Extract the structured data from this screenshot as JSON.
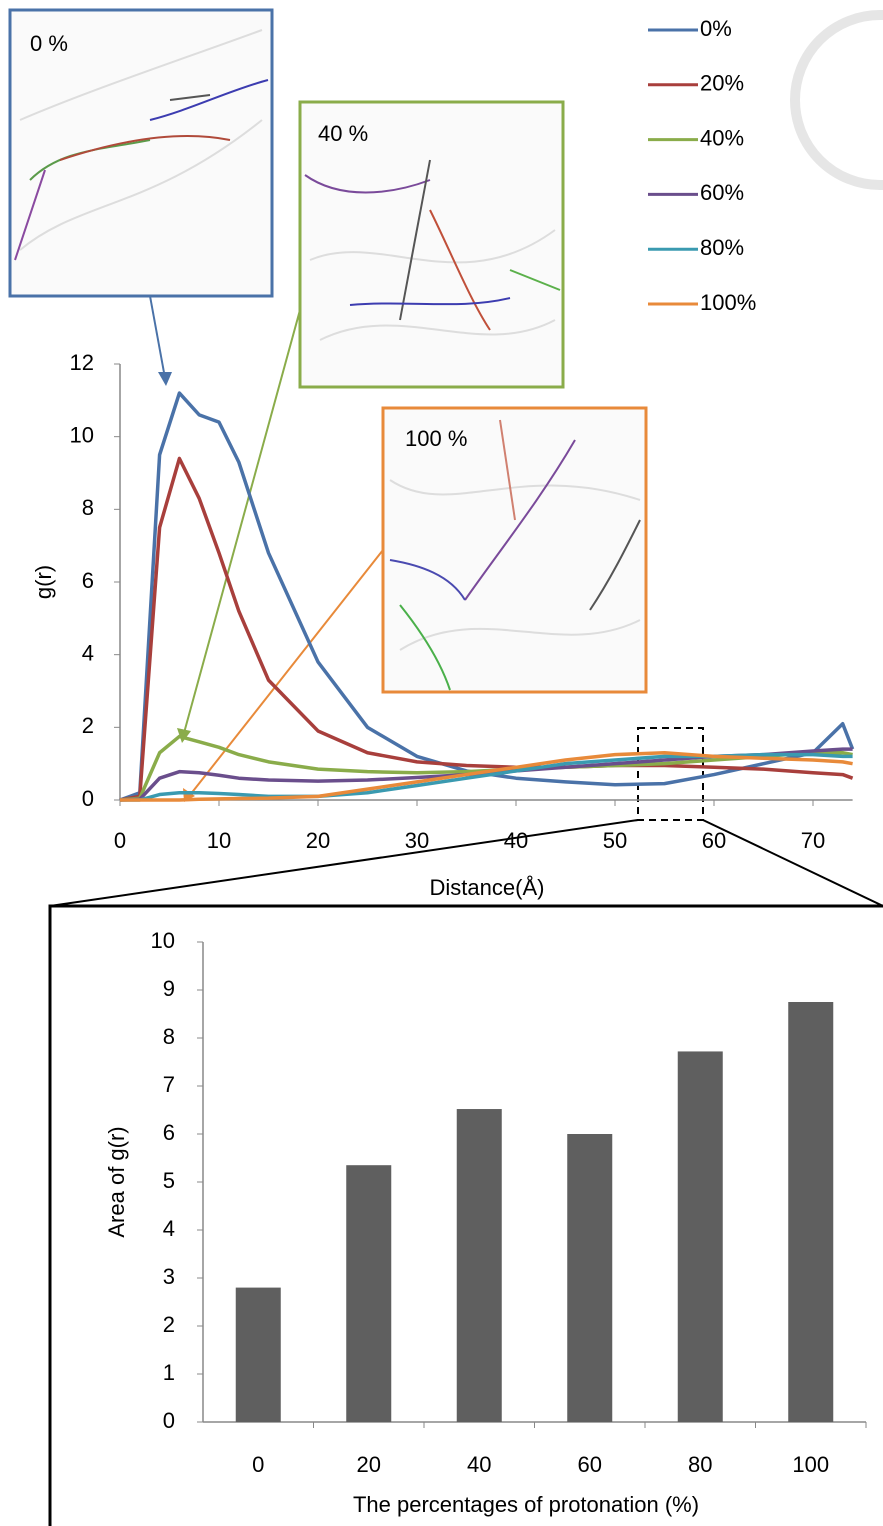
{
  "chart_data": [
    {
      "type": "line",
      "xlabel": "Distance(Å)",
      "ylabel": "g(r)",
      "x": [
        0,
        2,
        4,
        6,
        8,
        10,
        12,
        15,
        20,
        25,
        30,
        35,
        40,
        45,
        50,
        55,
        60,
        65,
        70,
        73,
        74
      ],
      "series": [
        {
          "name": "0%",
          "color": "#4a72a8",
          "values": [
            0,
            0.2,
            9.5,
            11.2,
            10.6,
            10.4,
            9.3,
            6.8,
            3.8,
            2.0,
            1.2,
            0.8,
            0.6,
            0.5,
            0.42,
            0.45,
            0.7,
            1.0,
            1.3,
            2.1,
            1.4
          ]
        },
        {
          "name": "20%",
          "color": "#a83f3c",
          "values": [
            0,
            0.1,
            7.5,
            9.4,
            8.3,
            6.8,
            5.2,
            3.3,
            1.9,
            1.3,
            1.05,
            0.95,
            0.9,
            0.9,
            0.95,
            0.95,
            0.9,
            0.85,
            0.75,
            0.7,
            0.6
          ]
        },
        {
          "name": "40%",
          "color": "#8aac4a",
          "values": [
            0,
            0.05,
            1.3,
            1.75,
            1.6,
            1.45,
            1.25,
            1.05,
            0.85,
            0.78,
            0.75,
            0.78,
            0.85,
            0.9,
            0.95,
            1.0,
            1.1,
            1.2,
            1.3,
            1.3,
            1.25
          ]
        },
        {
          "name": "60%",
          "color": "#6a4e8c",
          "values": [
            0,
            0.02,
            0.6,
            0.78,
            0.75,
            0.68,
            0.6,
            0.55,
            0.52,
            0.55,
            0.62,
            0.7,
            0.8,
            0.9,
            1.0,
            1.1,
            1.2,
            1.25,
            1.35,
            1.4,
            1.4
          ]
        },
        {
          "name": "80%",
          "color": "#3a9ab0",
          "values": [
            0,
            0,
            0.15,
            0.2,
            0.2,
            0.18,
            0.15,
            0.1,
            0.1,
            0.2,
            0.4,
            0.6,
            0.8,
            1.0,
            1.1,
            1.2,
            1.2,
            1.25,
            1.25,
            1.2,
            1.2
          ]
        },
        {
          "name": "100%",
          "color": "#e88a3a",
          "values": [
            0,
            0,
            0,
            0,
            0.02,
            0.03,
            0.04,
            0.05,
            0.1,
            0.3,
            0.5,
            0.7,
            0.9,
            1.1,
            1.25,
            1.3,
            1.2,
            1.15,
            1.1,
            1.05,
            1.0
          ]
        }
      ],
      "xlim": [
        0,
        74
      ],
      "xticks": [
        0,
        10,
        20,
        30,
        40,
        50,
        60,
        70
      ],
      "ylim": [
        0,
        12
      ],
      "yticks": [
        0,
        2,
        4,
        6,
        8,
        10,
        12
      ],
      "legend": "top-right"
    },
    {
      "type": "bar",
      "xlabel": "The percentages of protonation (%)",
      "ylabel": "Area of g(r)",
      "categories": [
        "0",
        "20",
        "40",
        "60",
        "80",
        "100"
      ],
      "values": [
        2.8,
        5.35,
        6.52,
        6.0,
        7.72,
        8.75
      ],
      "color": "#5f5f5f",
      "ylim": [
        0,
        10
      ],
      "yticks": [
        0,
        1,
        2,
        3,
        4,
        5,
        6,
        7,
        8,
        9,
        10
      ]
    }
  ],
  "insets": [
    {
      "label": "0 %"
    },
    {
      "label": "40 %"
    },
    {
      "label": "100 %"
    }
  ]
}
